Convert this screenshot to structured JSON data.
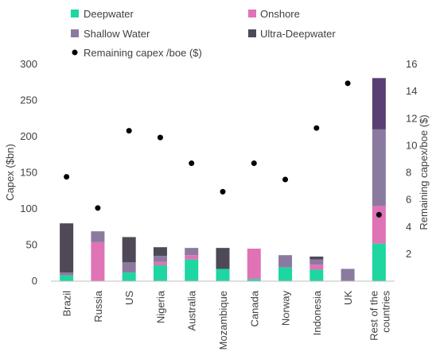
{
  "chart_data": {
    "type": "bar",
    "stacked": true,
    "categories": [
      "Brazil",
      "Russia",
      "US",
      "Nigeria",
      "Australia",
      "Mozambique",
      "Canada",
      "Norway",
      "Indonesia",
      "UK",
      "Rest of the countries"
    ],
    "series": [
      {
        "name": "Deepwater",
        "color": "#1ed6a0",
        "values": [
          8,
          0,
          12,
          22,
          30,
          17,
          3,
          19,
          16,
          0,
          52
        ]
      },
      {
        "name": "Onshore",
        "color": "#e072b6",
        "values": [
          0,
          54,
          0,
          5,
          6,
          0,
          42,
          0,
          7,
          0,
          52
        ]
      },
      {
        "name": "Shallow Water",
        "color": "#8b7aa0",
        "values": [
          4,
          15,
          14,
          8,
          10,
          0,
          0,
          17,
          7,
          17,
          106
        ]
      },
      {
        "name": "Ultra-Deepwater",
        "color": "#4f4856",
        "values": [
          68,
          0,
          35,
          12,
          0,
          29,
          0,
          0,
          4,
          0,
          71
        ]
      }
    ],
    "top_segment_override": {
      "index": 10,
      "color": "#5b3e74"
    },
    "secondary_series": {
      "name": "Remaining capex /boe ($)",
      "type": "scatter",
      "color": "#000000",
      "axis": "right",
      "values": [
        7.7,
        5.4,
        11.1,
        10.6,
        8.7,
        6.6,
        8.7,
        7.5,
        11.3,
        14.6,
        4.9
      ]
    },
    "ylabel": "Capex ($bn)",
    "ylabel_right": "Remaining capex/boe ($)",
    "ylim": [
      0,
      300
    ],
    "yticks": [
      "0",
      "50",
      "100",
      "150",
      "200",
      "250",
      "300"
    ],
    "ylim_right": [
      0,
      16
    ],
    "yticks_right": [
      "",
      "2",
      "4",
      "6",
      "8",
      "10",
      "12",
      "14",
      "16"
    ],
    "legend_position": "top",
    "grid": false
  }
}
